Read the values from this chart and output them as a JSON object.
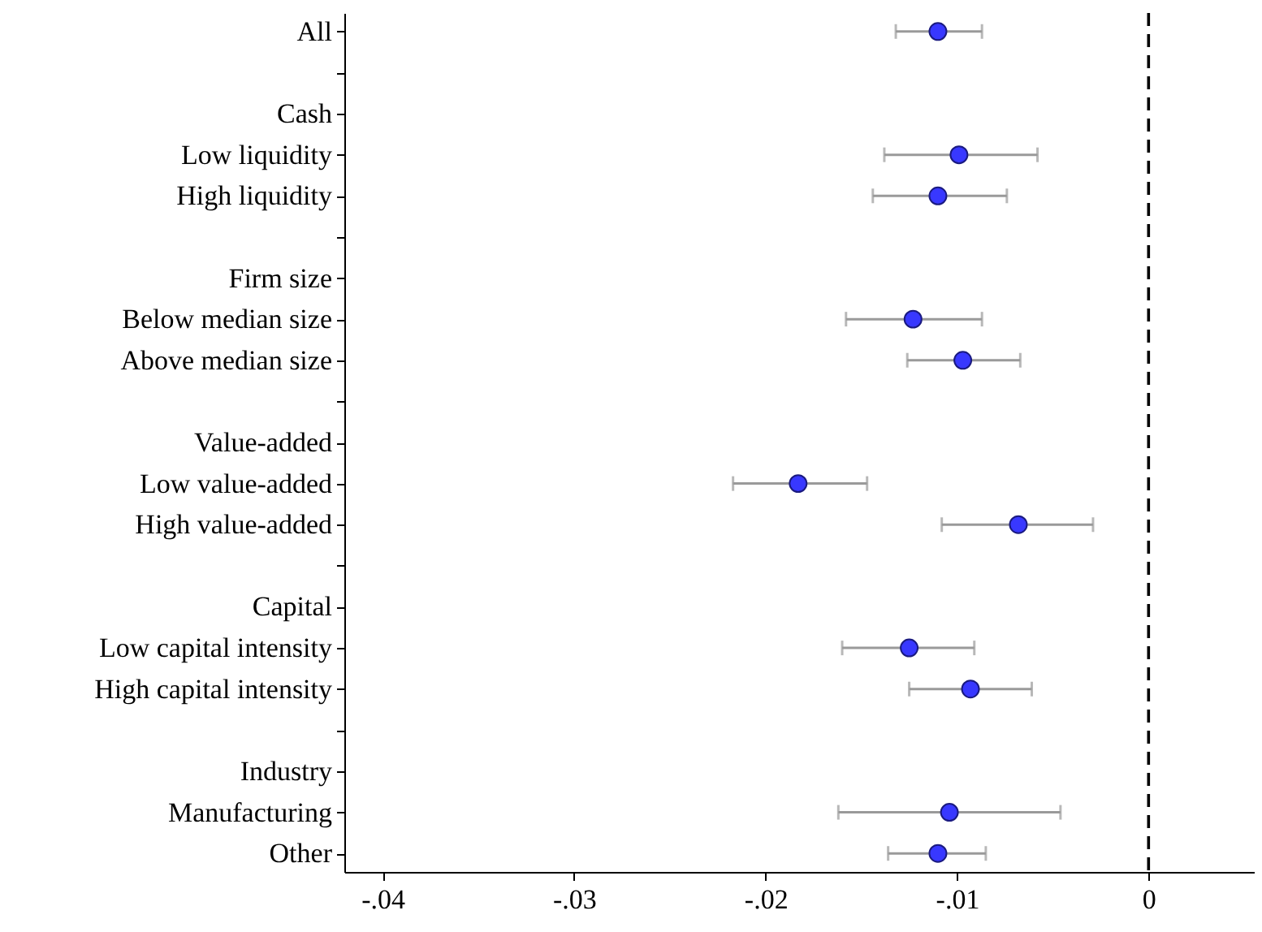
{
  "chart_data": {
    "type": "scatter",
    "orientation": "horizontal",
    "categories": [
      "All",
      null,
      "Cash",
      "Low liquidity",
      "High liquidity",
      null,
      "Firm size",
      "Below median size",
      "Above median size",
      null,
      "Value-added",
      "Low value-added",
      "High value-added",
      null,
      "Capital",
      "Low capital intensity",
      "High capital intensity",
      null,
      "Industry",
      "Manufacturing",
      "Other"
    ],
    "values": [
      -0.011,
      null,
      null,
      -0.0099,
      -0.011,
      null,
      null,
      -0.0123,
      -0.0097,
      null,
      null,
      -0.0183,
      -0.0068,
      null,
      null,
      -0.0125,
      -0.0093,
      null,
      null,
      -0.0104,
      -0.011
    ],
    "errors": [
      [
        -0.0132,
        -0.0087
      ],
      null,
      null,
      [
        -0.0138,
        -0.0058
      ],
      [
        -0.0144,
        -0.0074
      ],
      null,
      null,
      [
        -0.0158,
        -0.0087
      ],
      [
        -0.0126,
        -0.0067
      ],
      null,
      null,
      [
        -0.0217,
        -0.0147
      ],
      [
        -0.0108,
        -0.0029
      ],
      null,
      null,
      [
        -0.016,
        -0.0091
      ],
      [
        -0.0125,
        -0.0061
      ],
      null,
      null,
      [
        -0.0162,
        -0.0046
      ],
      [
        -0.0136,
        -0.0085
      ]
    ],
    "color": "#3838ff",
    "marker": "circle",
    "xlim": [
      -0.042,
      0.0055
    ],
    "xticks": [
      {
        "value": -0.04,
        "label": "-.04"
      },
      {
        "value": -0.03,
        "label": "-.03"
      },
      {
        "value": -0.02,
        "label": "-.02"
      },
      {
        "value": -0.01,
        "label": "-.01"
      },
      0
    ],
    "ref_lines": [
      {
        "axis": "x",
        "value": 0,
        "line_style": "dashed",
        "color": "#000000"
      }
    ]
  }
}
